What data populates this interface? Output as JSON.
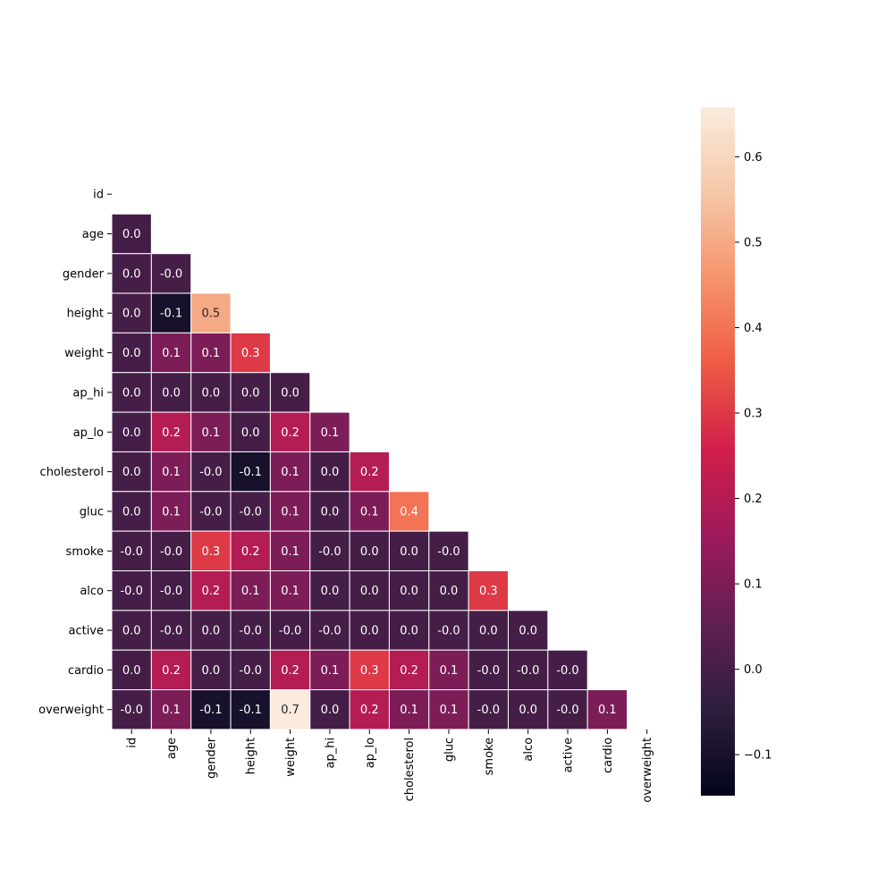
{
  "chart_data": {
    "type": "heatmap",
    "title": "",
    "xlabel": "",
    "ylabel": "",
    "mask": "upper-triangle-including-diagonal",
    "labels": [
      "id",
      "age",
      "gender",
      "height",
      "weight",
      "ap_hi",
      "ap_lo",
      "cholesterol",
      "gluc",
      "smoke",
      "alco",
      "active",
      "cardio",
      "overweight"
    ],
    "matrix": [
      [
        null,
        null,
        null,
        null,
        null,
        null,
        null,
        null,
        null,
        null,
        null,
        null,
        null,
        null
      ],
      [
        0.0,
        null,
        null,
        null,
        null,
        null,
        null,
        null,
        null,
        null,
        null,
        null,
        null,
        null
      ],
      [
        0.0,
        -0.0,
        null,
        null,
        null,
        null,
        null,
        null,
        null,
        null,
        null,
        null,
        null,
        null
      ],
      [
        0.0,
        -0.1,
        0.5,
        null,
        null,
        null,
        null,
        null,
        null,
        null,
        null,
        null,
        null,
        null
      ],
      [
        0.0,
        0.1,
        0.1,
        0.3,
        null,
        null,
        null,
        null,
        null,
        null,
        null,
        null,
        null,
        null
      ],
      [
        0.0,
        0.0,
        0.0,
        0.0,
        0.0,
        null,
        null,
        null,
        null,
        null,
        null,
        null,
        null,
        null
      ],
      [
        0.0,
        0.2,
        0.1,
        0.0,
        0.2,
        0.1,
        null,
        null,
        null,
        null,
        null,
        null,
        null,
        null
      ],
      [
        0.0,
        0.1,
        -0.0,
        -0.1,
        0.1,
        0.0,
        0.2,
        null,
        null,
        null,
        null,
        null,
        null,
        null
      ],
      [
        0.0,
        0.1,
        -0.0,
        -0.0,
        0.1,
        0.0,
        0.1,
        0.4,
        null,
        null,
        null,
        null,
        null,
        null
      ],
      [
        -0.0,
        -0.0,
        0.3,
        0.2,
        0.1,
        -0.0,
        0.0,
        0.0,
        -0.0,
        null,
        null,
        null,
        null,
        null
      ],
      [
        -0.0,
        -0.0,
        0.2,
        0.1,
        0.1,
        0.0,
        0.0,
        0.0,
        0.0,
        0.3,
        null,
        null,
        null,
        null
      ],
      [
        0.0,
        -0.0,
        0.0,
        -0.0,
        -0.0,
        -0.0,
        0.0,
        0.0,
        -0.0,
        0.0,
        0.0,
        null,
        null,
        null
      ],
      [
        0.0,
        0.2,
        0.0,
        -0.0,
        0.2,
        0.1,
        0.3,
        0.2,
        0.1,
        -0.0,
        -0.0,
        -0.0,
        null,
        null
      ],
      [
        -0.0,
        0.1,
        -0.1,
        -0.1,
        0.7,
        0.0,
        0.2,
        0.1,
        0.1,
        -0.0,
        0.0,
        -0.0,
        0.1,
        null
      ]
    ],
    "cell_text": [
      [
        null,
        null,
        null,
        null,
        null,
        null,
        null,
        null,
        null,
        null,
        null,
        null,
        null,
        null
      ],
      [
        "0.0",
        null,
        null,
        null,
        null,
        null,
        null,
        null,
        null,
        null,
        null,
        null,
        null,
        null
      ],
      [
        "0.0",
        "-0.0",
        null,
        null,
        null,
        null,
        null,
        null,
        null,
        null,
        null,
        null,
        null,
        null
      ],
      [
        "0.0",
        "-0.1",
        "0.5",
        null,
        null,
        null,
        null,
        null,
        null,
        null,
        null,
        null,
        null,
        null
      ],
      [
        "0.0",
        "0.1",
        "0.1",
        "0.3",
        null,
        null,
        null,
        null,
        null,
        null,
        null,
        null,
        null,
        null
      ],
      [
        "0.0",
        "0.0",
        "0.0",
        "0.0",
        "0.0",
        null,
        null,
        null,
        null,
        null,
        null,
        null,
        null,
        null
      ],
      [
        "0.0",
        "0.2",
        "0.1",
        "0.0",
        "0.2",
        "0.1",
        null,
        null,
        null,
        null,
        null,
        null,
        null,
        null
      ],
      [
        "0.0",
        "0.1",
        "-0.0",
        "-0.1",
        "0.1",
        "0.0",
        "0.2",
        null,
        null,
        null,
        null,
        null,
        null,
        null
      ],
      [
        "0.0",
        "0.1",
        "-0.0",
        "-0.0",
        "0.1",
        "0.0",
        "0.1",
        "0.4",
        null,
        null,
        null,
        null,
        null,
        null
      ],
      [
        "-0.0",
        "-0.0",
        "0.3",
        "0.2",
        "0.1",
        "-0.0",
        "0.0",
        "0.0",
        "-0.0",
        null,
        null,
        null,
        null,
        null
      ],
      [
        "-0.0",
        "-0.0",
        "0.2",
        "0.1",
        "0.1",
        "0.0",
        "0.0",
        "0.0",
        "0.0",
        "0.3",
        null,
        null,
        null,
        null
      ],
      [
        "0.0",
        "-0.0",
        "0.0",
        "-0.0",
        "-0.0",
        "-0.0",
        "0.0",
        "0.0",
        "-0.0",
        "0.0",
        "0.0",
        null,
        null,
        null
      ],
      [
        "0.0",
        "0.2",
        "0.0",
        "-0.0",
        "0.2",
        "0.1",
        "0.3",
        "0.2",
        "0.1",
        "-0.0",
        "-0.0",
        "-0.0",
        null,
        null
      ],
      [
        "-0.0",
        "0.1",
        "-0.1",
        "-0.1",
        "0.7",
        "0.0",
        "0.2",
        "0.1",
        "0.1",
        "-0.0",
        "0.0",
        "-0.0",
        "0.1",
        null
      ]
    ],
    "colorbar": {
      "colormap": "rocket",
      "vmin": -0.148,
      "vmax": 0.658,
      "ticks": [
        -0.1,
        0.0,
        0.1,
        0.2,
        0.3,
        0.4,
        0.5,
        0.6
      ],
      "tick_labels": [
        "−0.1",
        "0.0",
        "0.1",
        "0.2",
        "0.3",
        "0.4",
        "0.5",
        "0.6"
      ],
      "stops": [
        "#03051a",
        "#2d1e3e",
        "#611f53",
        "#9c1a5b",
        "#d01e4b",
        "#ee5a43",
        "#f6936c",
        "#f6c7a7",
        "#faebdd"
      ]
    },
    "colors": {
      "grid_line": "#ffffff",
      "tick_text": "#000000",
      "annot_light": "#ffffff",
      "annot_dark": "#262626"
    }
  }
}
